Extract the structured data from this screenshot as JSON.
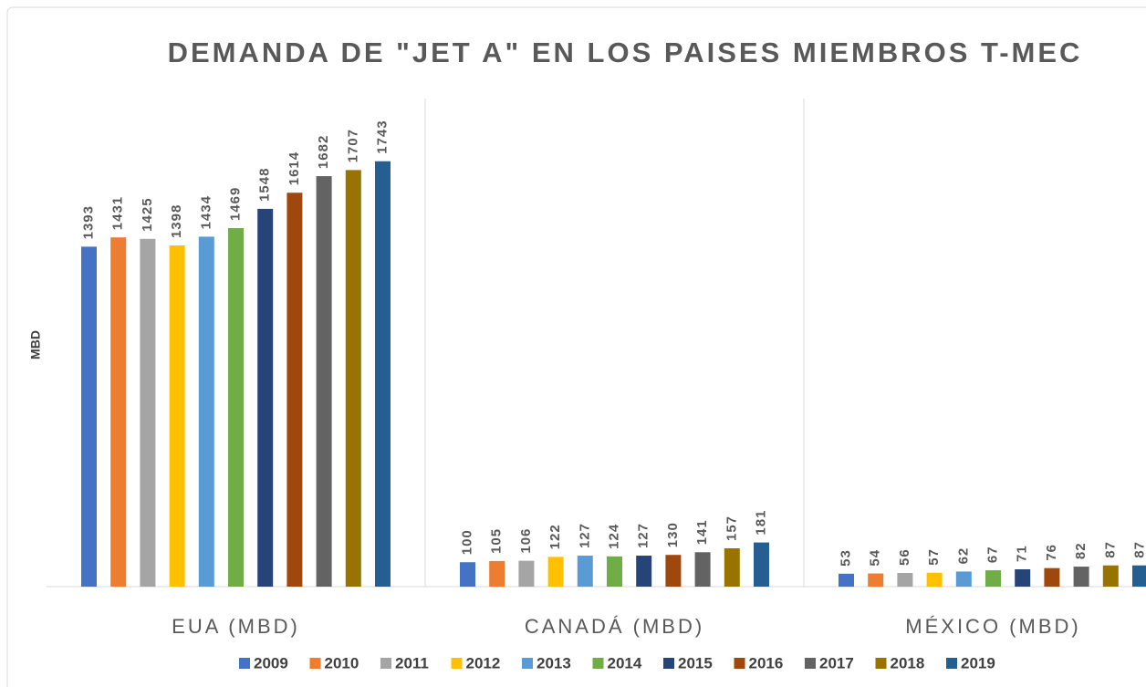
{
  "chart_data": {
    "type": "bar",
    "title": "DEMANDA DE \"JET A\" EN LOS PAISES MIEMBROS T-MEC",
    "y_label": "MBD",
    "categories": [
      "EUA (MBD)",
      "CANADÁ (MBD)",
      "MÉXICO (MBD)"
    ],
    "ylim": [
      0,
      2000
    ],
    "series": [
      {
        "name": "2009",
        "color": "#4472c4",
        "values": [
          1393,
          100,
          53
        ]
      },
      {
        "name": "2010",
        "color": "#ed7d31",
        "values": [
          1431,
          105,
          54
        ]
      },
      {
        "name": "2011",
        "color": "#a5a5a5",
        "values": [
          1425,
          106,
          56
        ]
      },
      {
        "name": "2012",
        "color": "#ffc000",
        "values": [
          1398,
          122,
          57
        ]
      },
      {
        "name": "2013",
        "color": "#5b9bd5",
        "values": [
          1434,
          127,
          62
        ]
      },
      {
        "name": "2014",
        "color": "#70ad47",
        "values": [
          1469,
          124,
          67
        ]
      },
      {
        "name": "2015",
        "color": "#264478",
        "values": [
          1548,
          127,
          71
        ]
      },
      {
        "name": "2016",
        "color": "#9e480e",
        "values": [
          1614,
          130,
          76
        ]
      },
      {
        "name": "2017",
        "color": "#636363",
        "values": [
          1682,
          141,
          82
        ]
      },
      {
        "name": "2018",
        "color": "#997300",
        "values": [
          1707,
          157,
          87
        ]
      },
      {
        "name": "2019",
        "color": "#255e91",
        "values": [
          1743,
          181,
          87
        ]
      }
    ],
    "legend": "bottom"
  }
}
